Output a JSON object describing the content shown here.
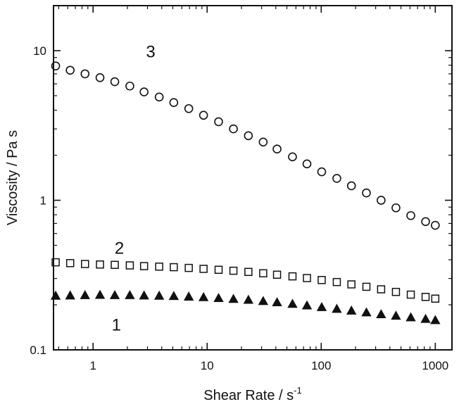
{
  "chart_data": {
    "type": "scatter",
    "title": "",
    "xlabel": "Shear Rate / s",
    "xlabel_superscript": "-1",
    "ylabel": "Viscosity / Pa s",
    "xscale": "log",
    "yscale": "log",
    "xlim": [
      0.45,
      1400
    ],
    "ylim": [
      0.1,
      20
    ],
    "x_ticks": [
      {
        "value": 1,
        "label": "1"
      },
      {
        "value": 10,
        "label": "10"
      },
      {
        "value": 100,
        "label": "100"
      },
      {
        "value": 1000,
        "label": "1000"
      }
    ],
    "y_ticks": [
      {
        "value": 0.1,
        "label": "0.1"
      },
      {
        "value": 1,
        "label": "1"
      },
      {
        "value": 10,
        "label": "10"
      }
    ],
    "grid": false,
    "legend": "none",
    "series": [
      {
        "label": "1",
        "marker": "filled-triangle",
        "label_pos": [
          1.6,
          0.135
        ],
        "x": [
          0.47,
          0.63,
          0.85,
          1.15,
          1.55,
          2.1,
          2.8,
          3.8,
          5.1,
          6.9,
          9.3,
          12.6,
          17,
          23,
          31,
          41,
          56,
          75,
          101,
          137,
          184,
          249,
          335,
          452,
          610,
          822,
          1000
        ],
        "y": [
          0.23,
          0.231,
          0.232,
          0.233,
          0.232,
          0.232,
          0.231,
          0.23,
          0.229,
          0.227,
          0.225,
          0.222,
          0.219,
          0.216,
          0.212,
          0.208,
          0.203,
          0.198,
          0.193,
          0.188,
          0.183,
          0.178,
          0.173,
          0.169,
          0.165,
          0.161,
          0.158
        ]
      },
      {
        "label": "2",
        "marker": "open-square",
        "label_pos": [
          1.7,
          0.44
        ],
        "x": [
          0.47,
          0.63,
          0.85,
          1.15,
          1.55,
          2.1,
          2.8,
          3.8,
          5.1,
          6.9,
          9.3,
          12.6,
          17,
          23,
          31,
          41,
          56,
          75,
          101,
          137,
          184,
          249,
          335,
          452,
          610,
          822,
          1000
        ],
        "y": [
          0.385,
          0.38,
          0.375,
          0.372,
          0.37,
          0.367,
          0.363,
          0.36,
          0.357,
          0.353,
          0.348,
          0.343,
          0.338,
          0.332,
          0.325,
          0.318,
          0.31,
          0.302,
          0.293,
          0.284,
          0.274,
          0.264,
          0.254,
          0.244,
          0.234,
          0.226,
          0.22
        ]
      },
      {
        "label": "3",
        "marker": "open-circle",
        "label_pos": [
          3.2,
          9.0
        ],
        "x": [
          0.47,
          0.63,
          0.85,
          1.15,
          1.55,
          2.1,
          2.8,
          3.8,
          5.1,
          6.9,
          9.3,
          12.6,
          17,
          23,
          31,
          41,
          56,
          75,
          101,
          137,
          184,
          249,
          335,
          452,
          610,
          822,
          1000
        ],
        "y": [
          7.9,
          7.4,
          7.0,
          6.6,
          6.2,
          5.8,
          5.3,
          4.9,
          4.5,
          4.1,
          3.7,
          3.35,
          3.0,
          2.7,
          2.45,
          2.2,
          1.95,
          1.75,
          1.55,
          1.4,
          1.25,
          1.12,
          1.0,
          0.89,
          0.79,
          0.72,
          0.68
        ]
      }
    ]
  }
}
